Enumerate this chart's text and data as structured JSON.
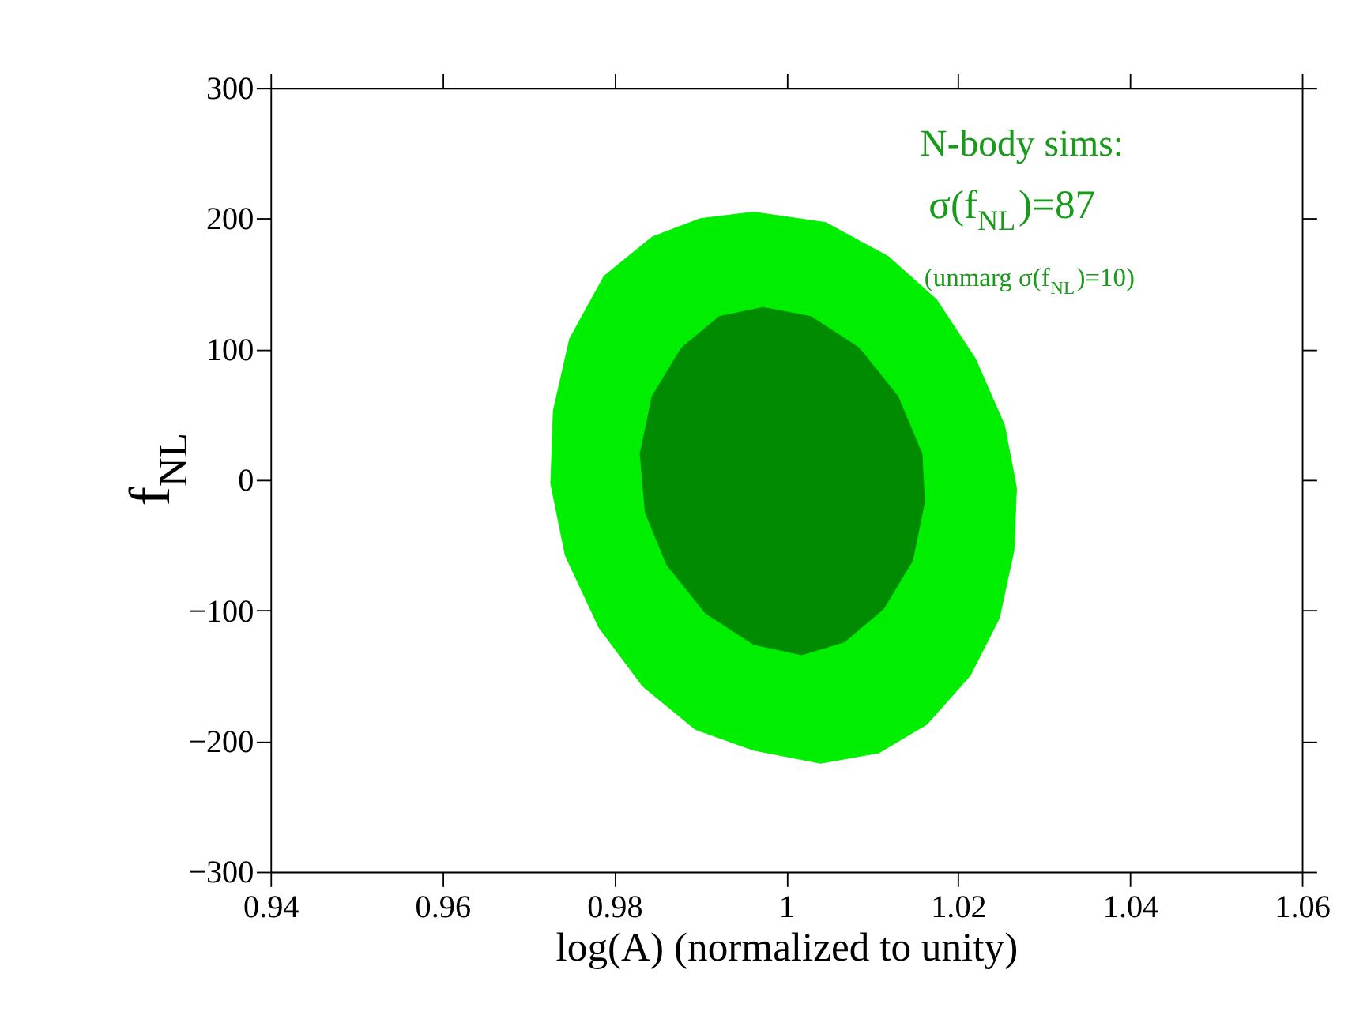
{
  "chart_data": {
    "type": "area",
    "xlabel": "log(A) (normalized to unity)",
    "ylabel": "f$_{NL}$",
    "xlim": [
      0.94,
      1.06
    ],
    "xticks": [
      0.94,
      0.96,
      0.98,
      1,
      1.02,
      1.04,
      1.06
    ],
    "ylim": [
      -300,
      300
    ],
    "yticks": [
      -300,
      -200,
      -100,
      0,
      100,
      200,
      300
    ],
    "grid": false,
    "annotations": [
      "N-body sims:",
      "σ(f$_{NL}$)=87",
      "(unmarg σ(f$_{NL}$)=10)"
    ],
    "series": [
      {
        "color": "#00ee00",
        "x": [
          0.9962,
          1.0046,
          1.0119,
          1.0175,
          1.022,
          1.0254,
          1.0268,
          1.0265,
          1.0248,
          1.0214,
          1.0164,
          1.0108,
          1.004,
          0.9962,
          0.9894,
          0.9833,
          0.9782,
          0.9743,
          0.9726,
          0.9729,
          0.9748,
          0.9788,
          0.9844,
          0.99
        ],
        "values": [
          205,
          197,
          171,
          138,
          93,
          42,
          -6,
          -54,
          -106,
          -150,
          -187,
          -209,
          -217,
          -207,
          -191,
          -158,
          -113,
          -58,
          -3,
          53,
          108,
          156,
          186,
          200
        ]
      },
      {
        "color": "#008b00",
        "x": [
          0.9973,
          1.0029,
          1.0085,
          1.013,
          1.0158,
          1.0161,
          1.0147,
          1.0113,
          1.0068,
          1.0018,
          0.9962,
          0.9906,
          0.9861,
          0.9836,
          0.983,
          0.9844,
          0.9878,
          0.9922
        ],
        "values": [
          132,
          125,
          101,
          64,
          20,
          -17,
          -62,
          -99,
          -124,
          -134,
          -126,
          -102,
          -65,
          -25,
          20,
          64,
          101,
          125
        ]
      }
    ]
  }
}
